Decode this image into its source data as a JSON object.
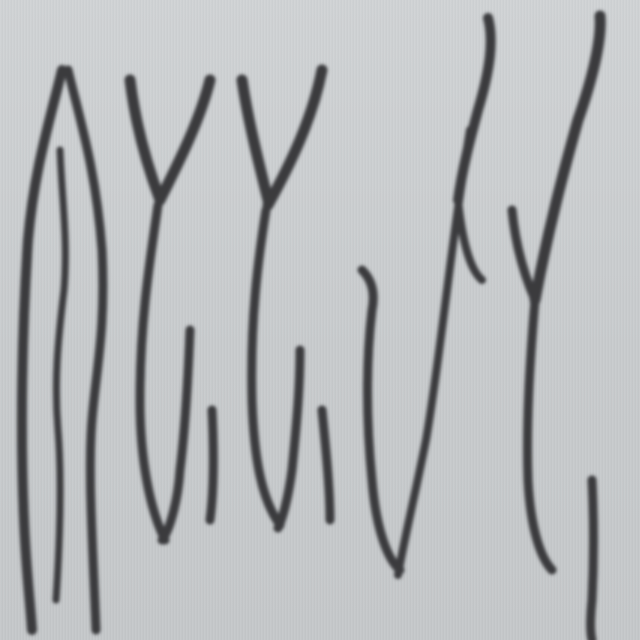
{
  "image": {
    "background_color": "#c9ccce",
    "stroke_color": "#3a3b3e",
    "glyphs": [
      "vertical-distorted-stroke-1",
      "vertical-distorted-stroke-2",
      "y-shape-distorted",
      "y-shape-distorted",
      "u-shape-distorted",
      "u-shape-distorted",
      "y-shape-distorted",
      "tall-stroke",
      "tall-stroke",
      "small-stroke"
    ]
  }
}
